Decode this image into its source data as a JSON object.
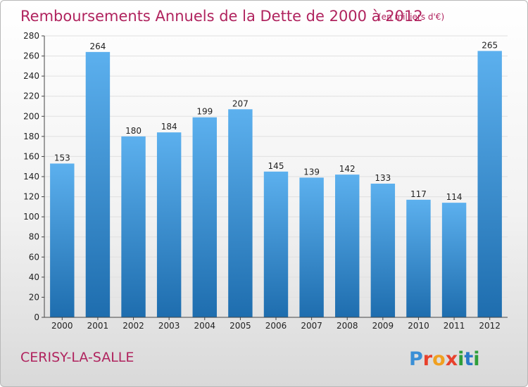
{
  "chart_data": {
    "type": "bar",
    "title": "Remboursements Annuels de la Dette de 2000 à 2012",
    "subtitle": "(en milliers d'€)",
    "categories": [
      "2000",
      "2001",
      "2002",
      "2003",
      "2004",
      "2005",
      "2006",
      "2007",
      "2008",
      "2009",
      "2010",
      "2011",
      "2012"
    ],
    "values": [
      153,
      264,
      180,
      184,
      199,
      207,
      145,
      139,
      142,
      133,
      117,
      114,
      265
    ],
    "ylim": [
      0,
      280
    ],
    "yticks": [
      0,
      20,
      40,
      60,
      80,
      100,
      120,
      140,
      160,
      180,
      200,
      220,
      240,
      260,
      280
    ],
    "grid": true,
    "legend": "none",
    "colors": {
      "bar_light": "#5aacea",
      "bar_dark": "#1f6fb0",
      "title": "#b0235e"
    }
  },
  "footer": {
    "commune": "CERISY-LA-SALLE",
    "brand": "Proxiti",
    "brand_colors": [
      "#3a8fd6",
      "#e8412c",
      "#f0a020",
      "#e8412c",
      "#2e9e3a",
      "#2a78c8",
      "#2e9e3a"
    ]
  }
}
